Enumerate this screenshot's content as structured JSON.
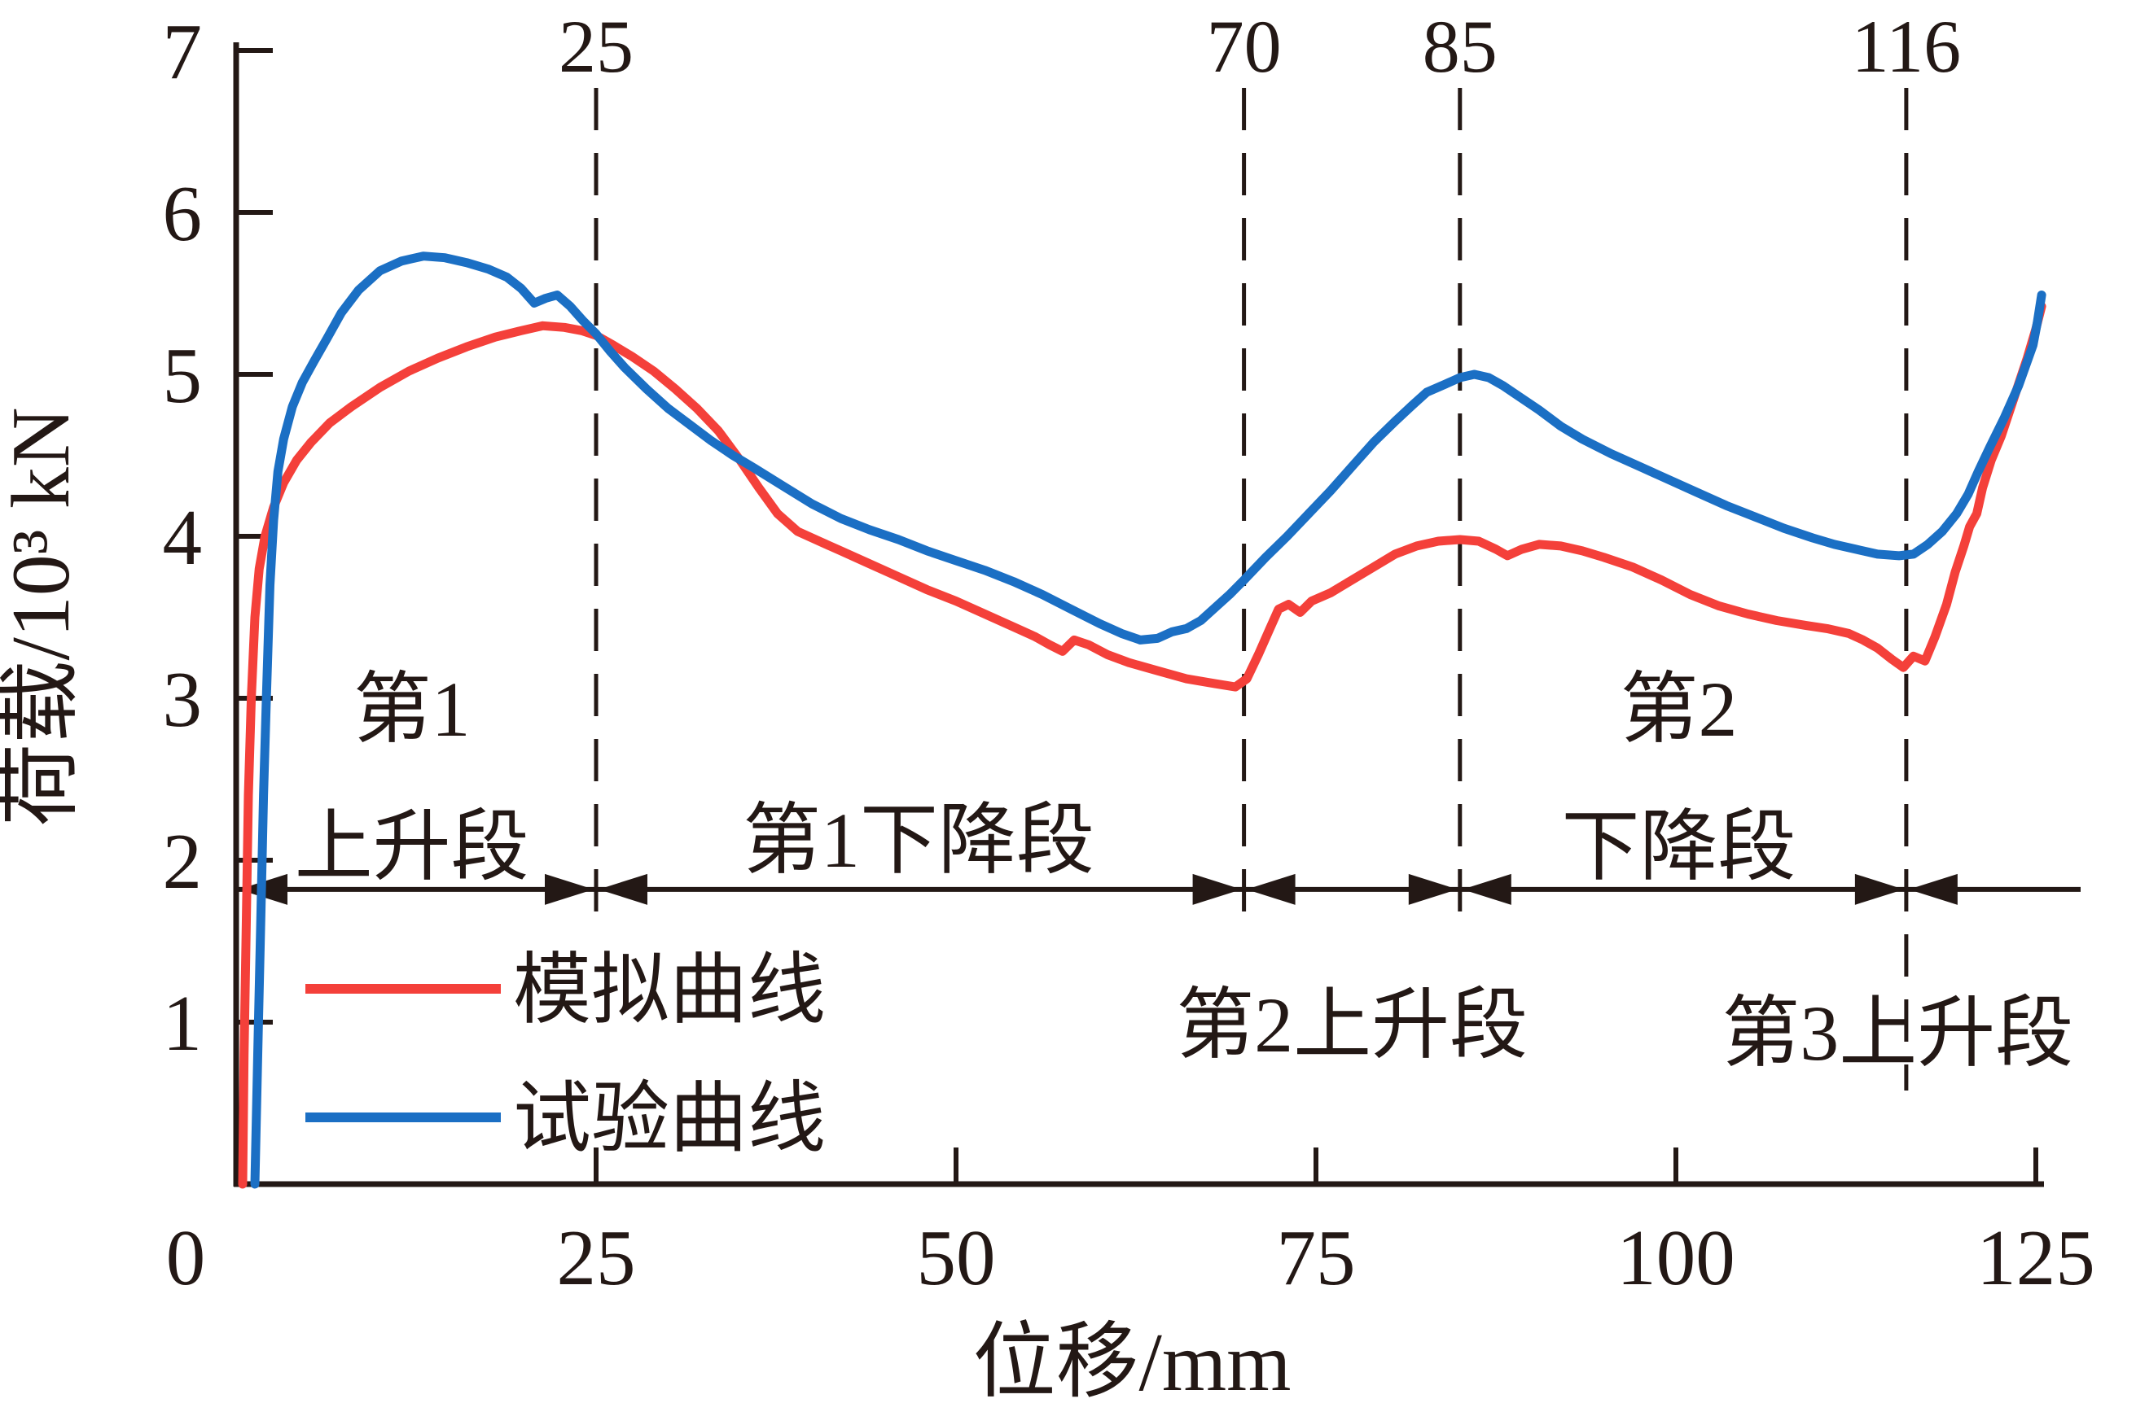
{
  "figure": {
    "background_color": "#ffffff",
    "axis_color": "#231815",
    "text_color": "#231815",
    "dashed_guide_color": "#231815",
    "arrow_line_color": "#231815"
  },
  "chart_data": {
    "type": "line",
    "title": "",
    "xlabel": "位移/mm",
    "ylabel": "荷载/10³ kN",
    "xlim": [
      0,
      125
    ],
    "ylim": [
      0,
      7
    ],
    "x_ticks": [
      0,
      25,
      50,
      75,
      100,
      125
    ],
    "y_ticks": [
      1,
      2,
      3,
      4,
      5,
      6,
      7
    ],
    "grid": false,
    "legend_position": "lower-left-inside",
    "series": [
      {
        "name": "模拟曲线",
        "color": "#f4403a",
        "points": [
          [
            0.45,
            0
          ],
          [
            0.55,
            0.8
          ],
          [
            0.7,
            1.6
          ],
          [
            0.85,
            2.4
          ],
          [
            1.05,
            3.0
          ],
          [
            1.3,
            3.5
          ],
          [
            1.6,
            3.8
          ],
          [
            2.0,
            4.0
          ],
          [
            2.6,
            4.18
          ],
          [
            3.3,
            4.33
          ],
          [
            4.2,
            4.47
          ],
          [
            5.2,
            4.58
          ],
          [
            6.5,
            4.7
          ],
          [
            8,
            4.8
          ],
          [
            10,
            4.92
          ],
          [
            12,
            5.02
          ],
          [
            14,
            5.1
          ],
          [
            16,
            5.17
          ],
          [
            18,
            5.23
          ],
          [
            19.8,
            5.27
          ],
          [
            21.3,
            5.3
          ],
          [
            22.8,
            5.29
          ],
          [
            24,
            5.27
          ],
          [
            25,
            5.24
          ],
          [
            26.2,
            5.18
          ],
          [
            27.5,
            5.11
          ],
          [
            29,
            5.02
          ],
          [
            30.5,
            4.91
          ],
          [
            32,
            4.79
          ],
          [
            33.5,
            4.65
          ],
          [
            35,
            4.47
          ],
          [
            36.3,
            4.3
          ],
          [
            37.6,
            4.14
          ],
          [
            39,
            4.03
          ],
          [
            40.5,
            3.97
          ],
          [
            42,
            3.91
          ],
          [
            44,
            3.83
          ],
          [
            46,
            3.75
          ],
          [
            48,
            3.67
          ],
          [
            50,
            3.6
          ],
          [
            52,
            3.52
          ],
          [
            54,
            3.44
          ],
          [
            55.5,
            3.38
          ],
          [
            56.5,
            3.33
          ],
          [
            57.4,
            3.29
          ],
          [
            58.2,
            3.36
          ],
          [
            59.2,
            3.33
          ],
          [
            60.5,
            3.27
          ],
          [
            62,
            3.22
          ],
          [
            64,
            3.17
          ],
          [
            66,
            3.12
          ],
          [
            68,
            3.09
          ],
          [
            69.4,
            3.07
          ],
          [
            70.2,
            3.12
          ],
          [
            71,
            3.27
          ],
          [
            71.8,
            3.43
          ],
          [
            72.4,
            3.55
          ],
          [
            73.1,
            3.58
          ],
          [
            73.9,
            3.53
          ],
          [
            74.7,
            3.6
          ],
          [
            76,
            3.65
          ],
          [
            77.5,
            3.73
          ],
          [
            79,
            3.81
          ],
          [
            80.5,
            3.89
          ],
          [
            82,
            3.94
          ],
          [
            83.5,
            3.97
          ],
          [
            85,
            3.98
          ],
          [
            86.3,
            3.97
          ],
          [
            87.5,
            3.92
          ],
          [
            88.3,
            3.88
          ],
          [
            89.3,
            3.92
          ],
          [
            90.5,
            3.95
          ],
          [
            92,
            3.94
          ],
          [
            93.5,
            3.91
          ],
          [
            95,
            3.87
          ],
          [
            97,
            3.81
          ],
          [
            99,
            3.73
          ],
          [
            101,
            3.64
          ],
          [
            103,
            3.57
          ],
          [
            105,
            3.52
          ],
          [
            107,
            3.48
          ],
          [
            109,
            3.45
          ],
          [
            110.5,
            3.43
          ],
          [
            112,
            3.4
          ],
          [
            113,
            3.36
          ],
          [
            114,
            3.31
          ],
          [
            115,
            3.24
          ],
          [
            115.8,
            3.19
          ],
          [
            116.5,
            3.26
          ],
          [
            117.3,
            3.23
          ],
          [
            118,
            3.38
          ],
          [
            118.8,
            3.58
          ],
          [
            119.4,
            3.78
          ],
          [
            120,
            3.94
          ],
          [
            120.4,
            4.06
          ],
          [
            120.9,
            4.14
          ],
          [
            121.3,
            4.3
          ],
          [
            121.9,
            4.47
          ],
          [
            122.6,
            4.62
          ],
          [
            123.5,
            4.86
          ],
          [
            124.4,
            5.1
          ],
          [
            125.0,
            5.28
          ],
          [
            125.4,
            5.42
          ]
        ]
      },
      {
        "name": "试验曲线",
        "color": "#1b6fc4",
        "points": [
          [
            1.3,
            0
          ],
          [
            1.5,
            0.8
          ],
          [
            1.7,
            1.6
          ],
          [
            1.9,
            2.4
          ],
          [
            2.1,
            3.0
          ],
          [
            2.35,
            3.7
          ],
          [
            2.6,
            4.1
          ],
          [
            2.9,
            4.4
          ],
          [
            3.3,
            4.6
          ],
          [
            3.9,
            4.8
          ],
          [
            4.6,
            4.95
          ],
          [
            5.4,
            5.08
          ],
          [
            6.3,
            5.22
          ],
          [
            7.3,
            5.38
          ],
          [
            8.5,
            5.52
          ],
          [
            10,
            5.64
          ],
          [
            11.5,
            5.7
          ],
          [
            13,
            5.73
          ],
          [
            14.5,
            5.72
          ],
          [
            16,
            5.69
          ],
          [
            17.5,
            5.65
          ],
          [
            18.8,
            5.6
          ],
          [
            19.8,
            5.53
          ],
          [
            20.7,
            5.44
          ],
          [
            21.5,
            5.47
          ],
          [
            22.3,
            5.49
          ],
          [
            23.2,
            5.42
          ],
          [
            24.1,
            5.33
          ],
          [
            25,
            5.25
          ],
          [
            26,
            5.14
          ],
          [
            27,
            5.04
          ],
          [
            28.5,
            4.91
          ],
          [
            30,
            4.79
          ],
          [
            31.5,
            4.69
          ],
          [
            33,
            4.59
          ],
          [
            34.5,
            4.5
          ],
          [
            36,
            4.42
          ],
          [
            38,
            4.31
          ],
          [
            40,
            4.2
          ],
          [
            42,
            4.11
          ],
          [
            44,
            4.04
          ],
          [
            46,
            3.98
          ],
          [
            48,
            3.91
          ],
          [
            50,
            3.85
          ],
          [
            52,
            3.79
          ],
          [
            54,
            3.72
          ],
          [
            56,
            3.64
          ],
          [
            58,
            3.55
          ],
          [
            60,
            3.46
          ],
          [
            61.5,
            3.4
          ],
          [
            62.8,
            3.36
          ],
          [
            64,
            3.37
          ],
          [
            65,
            3.41
          ],
          [
            66,
            3.43
          ],
          [
            67,
            3.48
          ],
          [
            68,
            3.56
          ],
          [
            69,
            3.64
          ],
          [
            70,
            3.73
          ],
          [
            71.5,
            3.87
          ],
          [
            73,
            4.0
          ],
          [
            74.5,
            4.14
          ],
          [
            76,
            4.28
          ],
          [
            77.5,
            4.43
          ],
          [
            79,
            4.58
          ],
          [
            80.5,
            4.71
          ],
          [
            81.7,
            4.81
          ],
          [
            82.7,
            4.89
          ],
          [
            84,
            4.94
          ],
          [
            85,
            4.98
          ],
          [
            86,
            5.0
          ],
          [
            87,
            4.98
          ],
          [
            88,
            4.93
          ],
          [
            89,
            4.87
          ],
          [
            90.5,
            4.78
          ],
          [
            92,
            4.68
          ],
          [
            93.5,
            4.6
          ],
          [
            95.5,
            4.51
          ],
          [
            97.5,
            4.43
          ],
          [
            99.5,
            4.35
          ],
          [
            101.5,
            4.27
          ],
          [
            103.5,
            4.19
          ],
          [
            105.5,
            4.12
          ],
          [
            107.5,
            4.05
          ],
          [
            109.5,
            3.99
          ],
          [
            111,
            3.95
          ],
          [
            112.5,
            3.92
          ],
          [
            114,
            3.89
          ],
          [
            115.5,
            3.88
          ],
          [
            116.5,
            3.89
          ],
          [
            117.5,
            3.95
          ],
          [
            118.5,
            4.03
          ],
          [
            119.5,
            4.14
          ],
          [
            120.3,
            4.26
          ],
          [
            121,
            4.4
          ],
          [
            121.8,
            4.55
          ],
          [
            122.8,
            4.73
          ],
          [
            123.8,
            4.93
          ],
          [
            124.8,
            5.18
          ],
          [
            125.1,
            5.32
          ],
          [
            125.4,
            5.49
          ]
        ]
      }
    ],
    "annotations": {
      "dashed_guides": [
        {
          "value_mm": 25,
          "label": "25"
        },
        {
          "value_mm": 70,
          "label": "70"
        },
        {
          "value_mm": 85,
          "label": "85"
        },
        {
          "value_mm": 116,
          "label": "116"
        }
      ],
      "segment_arrow_load": 1.82,
      "segment_boundaries_mm": [
        0,
        25,
        70,
        85,
        116
      ],
      "region_labels": [
        {
          "text": "第1",
          "x_mm": 12.2,
          "y_load": 2.94
        },
        {
          "text": "上升段",
          "x_mm": 12.2,
          "y_load": 2.09
        },
        {
          "text": "第1下降段",
          "x_mm": 47.4,
          "y_load": 2.13
        },
        {
          "text": "第2上升段",
          "x_mm": 77.5,
          "y_load": 0.99
        },
        {
          "text": "第2",
          "x_mm": 100.2,
          "y_load": 2.94
        },
        {
          "text": "下降段",
          "x_mm": 100.2,
          "y_load": 2.09
        },
        {
          "text": "第3上升段",
          "x_mm": 115.4,
          "y_load": 0.94
        }
      ]
    }
  },
  "legend": {
    "items": [
      {
        "label": "模拟曲线",
        "series_index": 0
      },
      {
        "label": "试验曲线",
        "series_index": 1
      }
    ]
  }
}
